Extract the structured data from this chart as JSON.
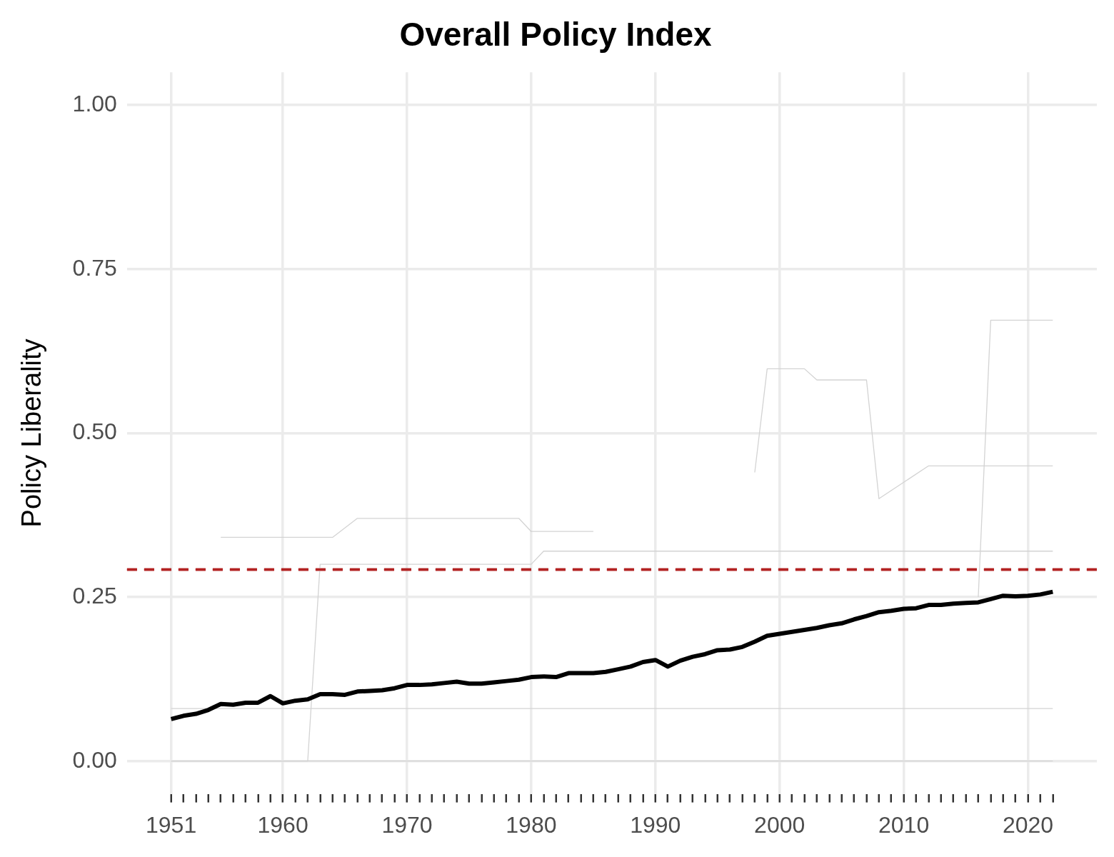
{
  "chart_data": {
    "type": "line",
    "title": "Overall Policy Index",
    "ylabel": "Policy Liberality",
    "xlim": [
      1947.45,
      2025.55
    ],
    "ylim": [
      -0.05,
      1.05
    ],
    "xticks": [
      1951,
      {
        "value": 1952,
        "label": null
      },
      {
        "value": 1953,
        "label": null
      },
      {
        "value": 1954,
        "label": null
      },
      {
        "value": 1955,
        "label": null
      },
      {
        "value": 1956,
        "label": null
      },
      {
        "value": 1957,
        "label": null
      },
      {
        "value": 1958,
        "label": null
      },
      {
        "value": 1959,
        "label": null
      },
      1960,
      {
        "value": 1961,
        "label": null
      },
      {
        "value": 1962,
        "label": null
      },
      {
        "value": 1963,
        "label": null
      },
      {
        "value": 1964,
        "label": null
      },
      {
        "value": 1965,
        "label": null
      },
      {
        "value": 1966,
        "label": null
      },
      {
        "value": 1967,
        "label": null
      },
      {
        "value": 1968,
        "label": null
      },
      {
        "value": 1969,
        "label": null
      },
      1970,
      {
        "value": 1971,
        "label": null
      },
      {
        "value": 1972,
        "label": null
      },
      {
        "value": 1973,
        "label": null
      },
      {
        "value": 1974,
        "label": null
      },
      {
        "value": 1975,
        "label": null
      },
      {
        "value": 1976,
        "label": null
      },
      {
        "value": 1977,
        "label": null
      },
      {
        "value": 1978,
        "label": null
      },
      {
        "value": 1979,
        "label": null
      },
      1980,
      {
        "value": 1981,
        "label": null
      },
      {
        "value": 1982,
        "label": null
      },
      {
        "value": 1983,
        "label": null
      },
      {
        "value": 1984,
        "label": null
      },
      {
        "value": 1985,
        "label": null
      },
      {
        "value": 1986,
        "label": null
      },
      {
        "value": 1987,
        "label": null
      },
      {
        "value": 1988,
        "label": null
      },
      {
        "value": 1989,
        "label": null
      },
      1990,
      {
        "value": 1991,
        "label": null
      },
      {
        "value": 1992,
        "label": null
      },
      {
        "value": 1993,
        "label": null
      },
      {
        "value": 1994,
        "label": null
      },
      {
        "value": 1995,
        "label": null
      },
      {
        "value": 1996,
        "label": null
      },
      {
        "value": 1997,
        "label": null
      },
      {
        "value": 1998,
        "label": null
      },
      {
        "value": 1999,
        "label": null
      },
      2000,
      {
        "value": 2001,
        "label": null
      },
      {
        "value": 2002,
        "label": null
      },
      {
        "value": 2003,
        "label": null
      },
      {
        "value": 2004,
        "label": null
      },
      {
        "value": 2005,
        "label": null
      },
      {
        "value": 2006,
        "label": null
      },
      {
        "value": 2007,
        "label": null
      },
      {
        "value": 2008,
        "label": null
      },
      {
        "value": 2009,
        "label": null
      },
      2010,
      {
        "value": 2011,
        "label": null
      },
      {
        "value": 2012,
        "label": null
      },
      {
        "value": 2013,
        "label": null
      },
      {
        "value": 2014,
        "label": null
      },
      {
        "value": 2015,
        "label": null
      },
      {
        "value": 2016,
        "label": null
      },
      {
        "value": 2017,
        "label": null
      },
      {
        "value": 2018,
        "label": null
      },
      {
        "value": 2019,
        "label": null
      },
      2020,
      {
        "value": 2021,
        "label": null
      },
      {
        "value": 2022,
        "label": null
      }
    ],
    "yticks": [
      {
        "value": 0,
        "label": "0.00"
      },
      {
        "value": 0.25,
        "label": "0.25"
      },
      {
        "value": 0.5,
        "label": "0.50"
      },
      {
        "value": 0.75,
        "label": "0.75"
      },
      {
        "value": 1,
        "label": "1.00"
      }
    ],
    "grid": true,
    "legend": false,
    "marker": "none",
    "line_style": "solid",
    "series": [
      {
        "color": "#d3d3d3",
        "x": [
          2016,
          2017,
          2022
        ],
        "values": [
          0.25,
          0.672,
          0.672
        ]
      },
      {
        "color": "#d3d3d3",
        "x": [
          1998,
          1999,
          2002,
          2003,
          2007,
          2008,
          2012,
          2022
        ],
        "values": [
          0.44,
          0.598,
          0.598,
          0.581,
          0.581,
          0.4,
          0.45,
          0.45
        ]
      },
      {
        "color": "#d3d3d3",
        "x": [
          1955,
          1964,
          1966,
          1979,
          1980,
          1985
        ],
        "values": [
          0.341,
          0.341,
          0.37,
          0.37,
          0.35,
          0.35
        ]
      },
      {
        "color": "#d3d3d3",
        "x": [
          1951,
          1962,
          1963,
          1980,
          1981,
          2022
        ],
        "values": [
          0,
          0,
          0.3,
          0.3,
          0.32,
          0.32
        ]
      },
      {
        "color": "#d3d3d3",
        "x": [
          1951,
          2022
        ],
        "values": [
          0.08,
          0.08
        ]
      },
      {
        "color": "#d3d3d3",
        "x": [
          1951,
          2022
        ],
        "values": [
          0,
          0
        ]
      },
      {
        "color": "#000000",
        "x": [
          1951,
          1952,
          1953,
          1954,
          1955,
          1956,
          1957,
          1958,
          1959,
          1960,
          1961,
          1962,
          1963,
          1964,
          1965,
          1966,
          1967,
          1968,
          1969,
          1970,
          1971,
          1972,
          1973,
          1974,
          1975,
          1976,
          1977,
          1978,
          1979,
          1980,
          1981,
          1982,
          1983,
          1984,
          1985,
          1986,
          1987,
          1988,
          1989,
          1990,
          1991,
          1992,
          1993,
          1994,
          1995,
          1996,
          1997,
          1998,
          1999,
          2000,
          2001,
          2002,
          2003,
          2004,
          2005,
          2006,
          2007,
          2008,
          2009,
          2010,
          2011,
          2012,
          2013,
          2014,
          2015,
          2016,
          2017,
          2018,
          2019,
          2020,
          2021,
          2022
        ],
        "values": [
          0.064,
          0.069,
          0.072,
          0.078,
          0.087,
          0.086,
          0.089,
          0.089,
          0.099,
          0.088,
          0.092,
          0.094,
          0.102,
          0.102,
          0.101,
          0.106,
          0.107,
          0.108,
          0.111,
          0.116,
          0.116,
          0.117,
          0.119,
          0.121,
          0.118,
          0.118,
          0.12,
          0.122,
          0.124,
          0.128,
          0.129,
          0.128,
          0.134,
          0.134,
          0.134,
          0.136,
          0.14,
          0.144,
          0.151,
          0.154,
          0.144,
          0.153,
          0.159,
          0.163,
          0.169,
          0.17,
          0.174,
          0.182,
          0.191,
          0.194,
          0.197,
          0.2,
          0.203,
          0.207,
          0.21,
          0.216,
          0.221,
          0.227,
          0.229,
          0.232,
          0.233,
          0.238,
          0.238,
          0.24,
          0.241,
          0.242,
          0.247,
          0.252,
          0.251,
          0.252,
          0.254,
          0.258
        ]
      }
    ],
    "ref_lines": [
      {
        "axis": "y",
        "value": 0.292,
        "color": "#b22222",
        "line_style": "dashed"
      }
    ]
  }
}
